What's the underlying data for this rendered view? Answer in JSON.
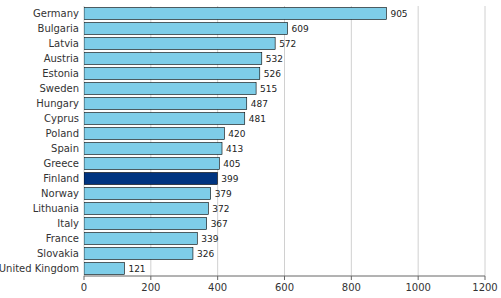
{
  "chart_data": {
    "type": "bar",
    "orientation": "horizontal",
    "categories": [
      "Germany",
      "Bulgaria",
      "Latvia",
      "Austria",
      "Estonia",
      "Sweden",
      "Hungary",
      "Cyprus",
      "Poland",
      "Spain",
      "Greece",
      "Finland",
      "Norway",
      "Lithuania",
      "Italy",
      "France",
      "Slovakia",
      "United Kingdom"
    ],
    "values": [
      905,
      609,
      572,
      532,
      526,
      515,
      487,
      481,
      420,
      413,
      405,
      399,
      379,
      372,
      367,
      339,
      326,
      121
    ],
    "colors": [
      "#7ECDE8",
      "#7ECDE8",
      "#7ECDE8",
      "#7ECDE8",
      "#7ECDE8",
      "#7ECDE8",
      "#7ECDE8",
      "#7ECDE8",
      "#7ECDE8",
      "#7ECDE8",
      "#7ECDE8",
      "#003480",
      "#7ECDE8",
      "#7ECDE8",
      "#7ECDE8",
      "#7ECDE8",
      "#7ECDE8",
      "#7ECDE8"
    ],
    "xlim": [
      0,
      1200
    ],
    "xticks": [
      0,
      200,
      400,
      600,
      800,
      1000,
      1200
    ],
    "grid": true,
    "data_labels": true
  }
}
